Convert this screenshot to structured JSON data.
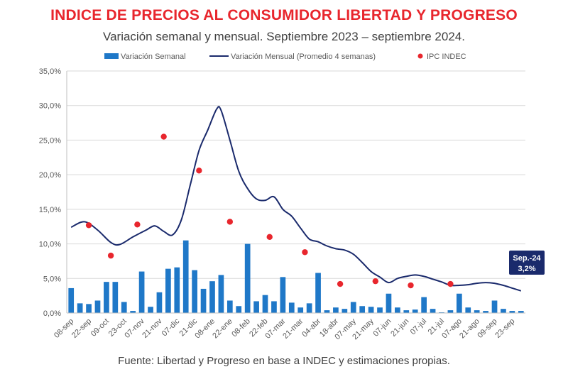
{
  "header": {
    "title": "INDICE DE PRECIOS AL CONSUMIDOR LIBERTAD Y PROGRESO",
    "subtitle": "Variación semanal y mensual. Septiembre 2023 – septiembre 2024."
  },
  "footer": {
    "source": "Fuente: Libertad y Progreso en base a INDEC y estimaciones propias."
  },
  "colors": {
    "bar": "#1f78c8",
    "line": "#1a2a6c",
    "dot": "#e8262d",
    "grid": "#d9d9d9",
    "callout_bg": "#1a2a6c"
  },
  "chart_data": {
    "type": "bar",
    "title": "INDICE DE PRECIOS AL CONSUMIDOR LIBERTAD Y PROGRESO",
    "xlabel": "",
    "ylabel": "",
    "ylim": [
      0,
      35
    ],
    "yticks": [
      0,
      5,
      10,
      15,
      20,
      25,
      30,
      35
    ],
    "ytick_labels": [
      "0,0%",
      "5,0%",
      "10,0%",
      "15,0%",
      "20,0%",
      "25,0%",
      "30,0%",
      "35,0%"
    ],
    "grid": true,
    "legend_position": "top",
    "x_tick_labels": [
      "08-sep",
      "22-sep",
      "09-oct",
      "23-oct",
      "07-nov",
      "21-nov",
      "07-dic",
      "21-dic",
      "08-ene",
      "22-ene",
      "08-feb",
      "22-feb",
      "07-mar",
      "21-mar",
      "04-abr",
      "18-abr",
      "07-may",
      "21-may",
      "07-jun",
      "21-jun",
      "07-jul",
      "21-jul",
      "07-ago",
      "21-ago",
      "09-sep",
      "23-sep"
    ],
    "series": [
      {
        "name": "Variación Semanal",
        "kind": "bar",
        "values": [
          3.6,
          1.4,
          1.3,
          1.8,
          4.5,
          4.5,
          1.6,
          0.3,
          6.0,
          0.9,
          3.0,
          6.4,
          6.6,
          10.5,
          6.2,
          3.5,
          4.6,
          5.5,
          1.8,
          1.0,
          10.0,
          1.7,
          2.6,
          1.7,
          5.2,
          1.5,
          0.8,
          1.4,
          5.8,
          0.4,
          0.8,
          0.6,
          1.6,
          1.0,
          0.9,
          0.8,
          2.8,
          0.8,
          0.4,
          0.5,
          2.3,
          0.6,
          0.1,
          0.4,
          2.8,
          0.8,
          0.4,
          0.3,
          1.8,
          0.6,
          0.3,
          0.3
        ]
      },
      {
        "name": "Variación Mensual (Promedio 4 semanas)",
        "kind": "line",
        "points": [
          {
            "x": 0,
            "y": 12.4
          },
          {
            "x": 1.5,
            "y": 13.2
          },
          {
            "x": 3,
            "y": 12.0
          },
          {
            "x": 4.5,
            "y": 10.2
          },
          {
            "x": 5.5,
            "y": 9.9
          },
          {
            "x": 7,
            "y": 11.0
          },
          {
            "x": 8.5,
            "y": 12.0
          },
          {
            "x": 9.5,
            "y": 12.6
          },
          {
            "x": 10.5,
            "y": 11.8
          },
          {
            "x": 11.5,
            "y": 11.3
          },
          {
            "x": 12.5,
            "y": 13.5
          },
          {
            "x": 13.5,
            "y": 18.5
          },
          {
            "x": 14.5,
            "y": 23.5
          },
          {
            "x": 15.5,
            "y": 26.5
          },
          {
            "x": 16.5,
            "y": 29.5
          },
          {
            "x": 17,
            "y": 29.3
          },
          {
            "x": 18,
            "y": 25.0
          },
          {
            "x": 19,
            "y": 20.5
          },
          {
            "x": 20,
            "y": 18.0
          },
          {
            "x": 21,
            "y": 16.5
          },
          {
            "x": 22,
            "y": 16.3
          },
          {
            "x": 23,
            "y": 16.8
          },
          {
            "x": 24,
            "y": 15.0
          },
          {
            "x": 25,
            "y": 14.0
          },
          {
            "x": 26,
            "y": 12.3
          },
          {
            "x": 27,
            "y": 10.7
          },
          {
            "x": 28,
            "y": 10.3
          },
          {
            "x": 29,
            "y": 9.7
          },
          {
            "x": 30,
            "y": 9.3
          },
          {
            "x": 31,
            "y": 9.1
          },
          {
            "x": 32,
            "y": 8.5
          },
          {
            "x": 33,
            "y": 7.3
          },
          {
            "x": 34,
            "y": 6.0
          },
          {
            "x": 35,
            "y": 5.2
          },
          {
            "x": 36,
            "y": 4.4
          },
          {
            "x": 37,
            "y": 5.0
          },
          {
            "x": 38,
            "y": 5.3
          },
          {
            "x": 39,
            "y": 5.5
          },
          {
            "x": 40,
            "y": 5.3
          },
          {
            "x": 41,
            "y": 4.9
          },
          {
            "x": 42,
            "y": 4.5
          },
          {
            "x": 43,
            "y": 4.0
          },
          {
            "x": 44,
            "y": 4.0
          },
          {
            "x": 45,
            "y": 4.1
          },
          {
            "x": 46,
            "y": 4.3
          },
          {
            "x": 47,
            "y": 4.4
          },
          {
            "x": 48,
            "y": 4.3
          },
          {
            "x": 49,
            "y": 4.0
          },
          {
            "x": 50,
            "y": 3.6
          },
          {
            "x": 51,
            "y": 3.2
          }
        ]
      },
      {
        "name": "IPC INDEC",
        "kind": "scatter",
        "points": [
          {
            "x": 2,
            "y": 12.7
          },
          {
            "x": 4.5,
            "y": 8.3
          },
          {
            "x": 7.5,
            "y": 12.8
          },
          {
            "x": 10.5,
            "y": 25.5
          },
          {
            "x": 14.5,
            "y": 20.6
          },
          {
            "x": 18,
            "y": 13.2
          },
          {
            "x": 22.5,
            "y": 11.0
          },
          {
            "x": 26.5,
            "y": 8.8
          },
          {
            "x": 30.5,
            "y": 4.2
          },
          {
            "x": 34.5,
            "y": 4.6
          },
          {
            "x": 38.5,
            "y": 4.0
          },
          {
            "x": 43,
            "y": 4.2
          }
        ]
      }
    ],
    "annotation": {
      "label": "Sep.-24",
      "value_label": "3,2%",
      "x": 51,
      "y": 3.2
    }
  }
}
